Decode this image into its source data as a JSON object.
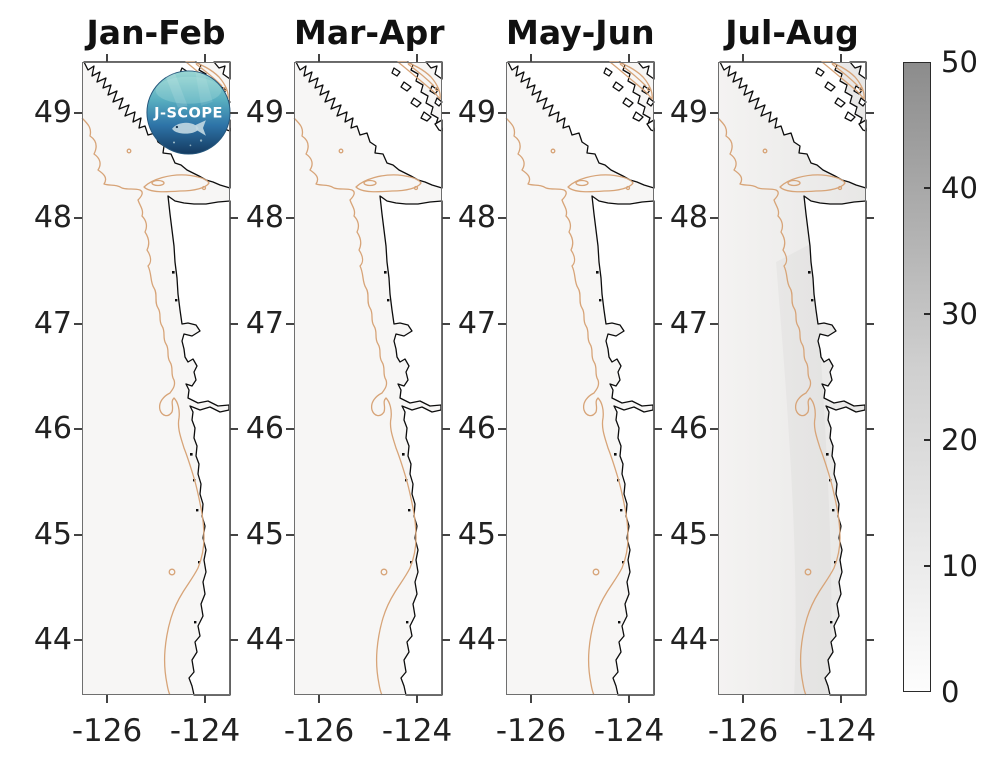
{
  "figure": {
    "background": "#ffffff",
    "description": "Four-panel seasonal coastal map figure (J-SCOPE forecast region, WA-OR coast) with grayscale colorbar"
  },
  "panels": [
    {
      "title": "Jan-Feb",
      "has_logo": true,
      "shaded": false
    },
    {
      "title": "Mar-Apr",
      "has_logo": false,
      "shaded": false
    },
    {
      "title": "May-Jun",
      "has_logo": false,
      "shaded": false
    },
    {
      "title": "Jul-Aug",
      "has_logo": false,
      "shaded": true
    }
  ],
  "axes": {
    "lat_tick_labels": [
      "49",
      "48",
      "47",
      "46",
      "45",
      "44"
    ],
    "lon_tick_labels": [
      "-126",
      "-124"
    ],
    "lat_range_shown": [
      43.5,
      49.5
    ],
    "lon_range_shown": [
      -126.5,
      -123.5
    ]
  },
  "colorbar": {
    "tick_labels_top_to_bottom": [
      "50",
      "40",
      "30",
      "20",
      "10",
      "0"
    ],
    "min": 0,
    "max": 50,
    "top_color": "#8c8c8c",
    "mid_color": "#cfcfcf",
    "bottom_color": "#fdfdfd"
  },
  "logo": {
    "text": "J-SCOPE"
  },
  "colors": {
    "coastline": "#0d0d0d",
    "land": "#ffffff",
    "ocean_light": "#f7f6f5",
    "ocean_shaded_start": "#f4f3f2",
    "ocean_shaded_end": "#e8e7e6",
    "depth_contour": "#d7a478",
    "panel_frame": "#6f6f6f",
    "tick_color": "#444444"
  },
  "chart_data": {
    "type": "heatmap",
    "title": "",
    "facets": [
      "Jan-Feb",
      "Mar-Apr",
      "May-Jun",
      "Jul-Aug"
    ],
    "colorbar_ticks": [
      0,
      10,
      20,
      30,
      40,
      50
    ],
    "colorbar_range": [
      0,
      50
    ],
    "x_ticks": [
      -126,
      -124
    ],
    "y_ticks": [
      49,
      48,
      47,
      46,
      45,
      44
    ],
    "field_note": "Mapped field is near 0 (white) in Jan-Feb through May-Jun; slightly elevated (~2-8, light gray) over the shelf and offshore in Jul-Aug",
    "map_overlays": [
      "black coastline (Vancouver Island, Strait of Juan de Fuca, WA-OR coast)",
      "tan depth contour along shelf break"
    ]
  }
}
